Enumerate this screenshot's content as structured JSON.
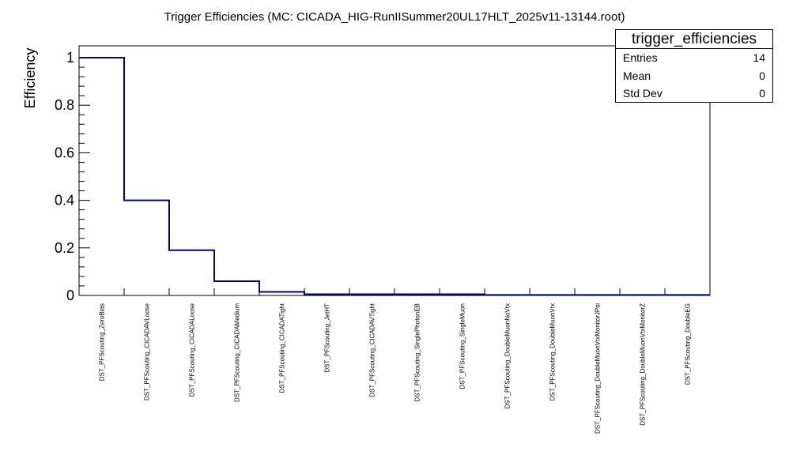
{
  "chart_data": {
    "type": "step",
    "title": "Trigger Efficiencies (MC: CICADA_HIG-RunIISummer20UL17HLT_2025v11-13144.root)",
    "xlabel": "",
    "ylabel": "Efficiency",
    "ylim": [
      0,
      1.0
    ],
    "yticks": [
      "0",
      "0.2",
      "0.4",
      "0.6",
      "0.8",
      "1"
    ],
    "yticks_values": [
      0,
      0.2,
      0.4,
      0.6,
      0.8,
      1.0
    ],
    "categories": [
      "DST_PFScouting_ZeroBias",
      "DST_PFScouting_CICADAVLoose",
      "DST_PFScouting_CICADALoose",
      "DST_PFScouting_CICADAMedium",
      "DST_PFScouting_CICADATight",
      "DST_PFScouting_JetHT",
      "DST_PFScouting_CICADAVTight",
      "DST_PFScouting_SinglePhotonEB",
      "DST_PFScouting_SingleMuon",
      "DST_PFScouting_DoubleMuonNoVtx",
      "DST_PFScouting_DoubleMuonVtx",
      "DST_PFScouting_DoubleMuonVtxMonitorJPsi",
      "DST_PFScouting_DoubleMuonVtxMonitorZ",
      "DST_PFScouting_DoubleEG"
    ],
    "values": [
      1.0,
      0.4,
      0.19,
      0.06,
      0.015,
      0.005,
      0.005,
      0.005,
      0.005,
      0.002,
      0.002,
      0.002,
      0.002,
      0.002
    ],
    "line_color": "#000080",
    "grid": false,
    "stats": {
      "name": "trigger_efficiencies",
      "rows": [
        {
          "label": "Entries",
          "value": "14"
        },
        {
          "label": "Mean",
          "value": "0"
        },
        {
          "label": "Std Dev",
          "value": "0"
        }
      ]
    }
  }
}
